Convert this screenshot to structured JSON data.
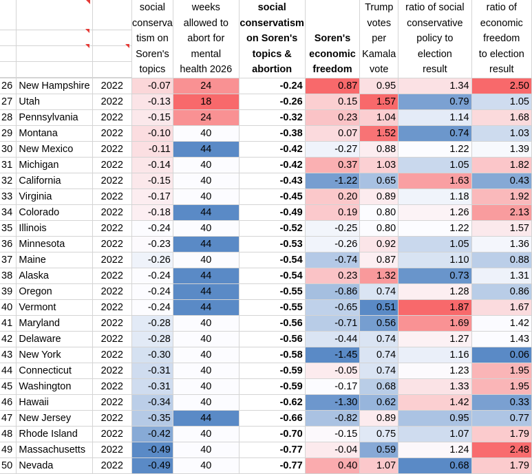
{
  "headers": [
    {
      "key": "col_a",
      "lines": [
        "",
        "",
        "",
        ""
      ]
    },
    {
      "key": "col_b",
      "lines": [
        "",
        "",
        "",
        ""
      ]
    },
    {
      "key": "col_c",
      "lines": [
        "",
        "",
        "",
        ""
      ]
    },
    {
      "key": "social",
      "lines": [
        "social",
        "conserva",
        "tism on",
        "Soren's",
        "topics"
      ]
    },
    {
      "key": "weeks",
      "lines": [
        "weeks",
        "allowed to",
        "abort for",
        "mental",
        "health 2026"
      ]
    },
    {
      "key": "social_abort",
      "lines": [
        "social",
        "conservatism",
        "on Soren's",
        "topics &",
        "abortion"
      ]
    },
    {
      "key": "econ",
      "lines": [
        "",
        "Soren's",
        "economic",
        "freedom"
      ]
    },
    {
      "key": "trump",
      "lines": [
        "Trump",
        "votes",
        "per",
        "Kamala",
        "vote"
      ]
    },
    {
      "key": "ratio_social",
      "lines": [
        "ratio of social",
        "conservative",
        "policy to",
        "election",
        "result"
      ]
    },
    {
      "key": "ratio_econ",
      "lines": [
        "ratio of",
        "economic",
        "freedom",
        "to election",
        "result"
      ]
    }
  ],
  "rows": [
    {
      "rank": "26",
      "state": "New Hampshire",
      "year": "2022",
      "social": "-0.07",
      "weeks": "24",
      "social_abort": "-0.24",
      "econ": "0.87",
      "trump": "0.95",
      "ratio_social": "1.34",
      "ratio_econ": "2.50"
    },
    {
      "rank": "27",
      "state": "Utah",
      "year": "2022",
      "social": "-0.13",
      "weeks": "18",
      "social_abort": "-0.26",
      "econ": "0.15",
      "trump": "1.57",
      "ratio_social": "0.79",
      "ratio_econ": "1.05"
    },
    {
      "rank": "28",
      "state": "Pennsylvania",
      "year": "2022",
      "social": "-0.15",
      "weeks": "24",
      "social_abort": "-0.32",
      "econ": "0.23",
      "trump": "1.04",
      "ratio_social": "1.14",
      "ratio_econ": "1.68"
    },
    {
      "rank": "29",
      "state": "Montana",
      "year": "2022",
      "social": "-0.10",
      "weeks": "40",
      "social_abort": "-0.38",
      "econ": "0.07",
      "trump": "1.52",
      "ratio_social": "0.74",
      "ratio_econ": "1.03"
    },
    {
      "rank": "30",
      "state": "New Mexico",
      "year": "2022",
      "social": "-0.11",
      "weeks": "44",
      "social_abort": "-0.42",
      "econ": "-0.27",
      "trump": "0.88",
      "ratio_social": "1.22",
      "ratio_econ": "1.39"
    },
    {
      "rank": "31",
      "state": "Michigan",
      "year": "2022",
      "social": "-0.14",
      "weeks": "40",
      "social_abort": "-0.42",
      "econ": "0.37",
      "trump": "1.03",
      "ratio_social": "1.05",
      "ratio_econ": "1.82"
    },
    {
      "rank": "32",
      "state": "California",
      "year": "2022",
      "social": "-0.15",
      "weeks": "40",
      "social_abort": "-0.43",
      "econ": "-1.22",
      "trump": "0.65",
      "ratio_social": "1.63",
      "ratio_econ": "0.43"
    },
    {
      "rank": "33",
      "state": "Virginia",
      "year": "2022",
      "social": "-0.17",
      "weeks": "40",
      "social_abort": "-0.45",
      "econ": "0.20",
      "trump": "0.89",
      "ratio_social": "1.18",
      "ratio_econ": "1.92"
    },
    {
      "rank": "34",
      "state": "Colorado",
      "year": "2022",
      "social": "-0.18",
      "weeks": "44",
      "social_abort": "-0.49",
      "econ": "0.19",
      "trump": "0.80",
      "ratio_social": "1.26",
      "ratio_econ": "2.13"
    },
    {
      "rank": "35",
      "state": "Illinois",
      "year": "2022",
      "social": "-0.24",
      "weeks": "40",
      "social_abort": "-0.52",
      "econ": "-0.25",
      "trump": "0.80",
      "ratio_social": "1.22",
      "ratio_econ": "1.57"
    },
    {
      "rank": "36",
      "state": "Minnesota",
      "year": "2022",
      "social": "-0.23",
      "weeks": "44",
      "social_abort": "-0.53",
      "econ": "-0.26",
      "trump": "0.92",
      "ratio_social": "1.05",
      "ratio_econ": "1.36"
    },
    {
      "rank": "37",
      "state": "Maine",
      "year": "2022",
      "social": "-0.26",
      "weeks": "40",
      "social_abort": "-0.54",
      "econ": "-0.74",
      "trump": "0.87",
      "ratio_social": "1.10",
      "ratio_econ": "0.88"
    },
    {
      "rank": "38",
      "state": "Alaska",
      "year": "2022",
      "social": "-0.24",
      "weeks": "44",
      "social_abort": "-0.54",
      "econ": "0.23",
      "trump": "1.32",
      "ratio_social": "0.73",
      "ratio_econ": "1.31"
    },
    {
      "rank": "39",
      "state": "Oregon",
      "year": "2022",
      "social": "-0.24",
      "weeks": "44",
      "social_abort": "-0.55",
      "econ": "-0.86",
      "trump": "0.74",
      "ratio_social": "1.28",
      "ratio_econ": "0.86"
    },
    {
      "rank": "40",
      "state": "Vermont",
      "year": "2022",
      "social": "-0.24",
      "weeks": "44",
      "social_abort": "-0.55",
      "econ": "-0.65",
      "trump": "0.51",
      "ratio_social": "1.87",
      "ratio_econ": "1.67"
    },
    {
      "rank": "41",
      "state": "Maryland",
      "year": "2022",
      "social": "-0.28",
      "weeks": "40",
      "social_abort": "-0.56",
      "econ": "-0.71",
      "trump": "0.56",
      "ratio_social": "1.69",
      "ratio_econ": "1.42"
    },
    {
      "rank": "42",
      "state": "Delaware",
      "year": "2022",
      "social": "-0.28",
      "weeks": "40",
      "social_abort": "-0.56",
      "econ": "-0.44",
      "trump": "0.74",
      "ratio_social": "1.27",
      "ratio_econ": "1.43"
    },
    {
      "rank": "43",
      "state": "New York",
      "year": "2022",
      "social": "-0.30",
      "weeks": "40",
      "social_abort": "-0.58",
      "econ": "-1.45",
      "trump": "0.74",
      "ratio_social": "1.16",
      "ratio_econ": "0.06"
    },
    {
      "rank": "44",
      "state": "Connecticut",
      "year": "2022",
      "social": "-0.31",
      "weeks": "40",
      "social_abort": "-0.59",
      "econ": "-0.05",
      "trump": "0.74",
      "ratio_social": "1.23",
      "ratio_econ": "1.95"
    },
    {
      "rank": "45",
      "state": "Washington",
      "year": "2022",
      "social": "-0.31",
      "weeks": "40",
      "social_abort": "-0.59",
      "econ": "-0.17",
      "trump": "0.68",
      "ratio_social": "1.33",
      "ratio_econ": "1.95"
    },
    {
      "rank": "46",
      "state": "Hawaii",
      "year": "2022",
      "social": "-0.34",
      "weeks": "40",
      "social_abort": "-0.62",
      "econ": "-1.30",
      "trump": "0.62",
      "ratio_social": "1.42",
      "ratio_econ": "0.33"
    },
    {
      "rank": "47",
      "state": "New Jersey",
      "year": "2022",
      "social": "-0.35",
      "weeks": "44",
      "social_abort": "-0.66",
      "econ": "-0.82",
      "trump": "0.89",
      "ratio_social": "0.95",
      "ratio_econ": "0.77"
    },
    {
      "rank": "48",
      "state": "Rhode Island",
      "year": "2022",
      "social": "-0.42",
      "weeks": "40",
      "social_abort": "-0.70",
      "econ": "-0.15",
      "trump": "0.75",
      "ratio_social": "1.07",
      "ratio_econ": "1.79"
    },
    {
      "rank": "49",
      "state": "Massachusetts",
      "year": "2022",
      "social": "-0.49",
      "weeks": "40",
      "social_abort": "-0.77",
      "econ": "-0.04",
      "trump": "0.59",
      "ratio_social": "1.24",
      "ratio_econ": "2.48"
    },
    {
      "rank": "50",
      "state": "Nevada",
      "year": "2022",
      "social": "-0.49",
      "weeks": "40",
      "social_abort": "-0.77",
      "econ": "0.40",
      "trump": "1.07",
      "ratio_social": "0.68",
      "ratio_econ": "1.79"
    }
  ],
  "colors": {
    "low": "#5a8ac6",
    "mid": "#fcfcff",
    "high": "#f8696b",
    "grid": "#d4d4d4",
    "comment_marker": "#e53935"
  }
}
